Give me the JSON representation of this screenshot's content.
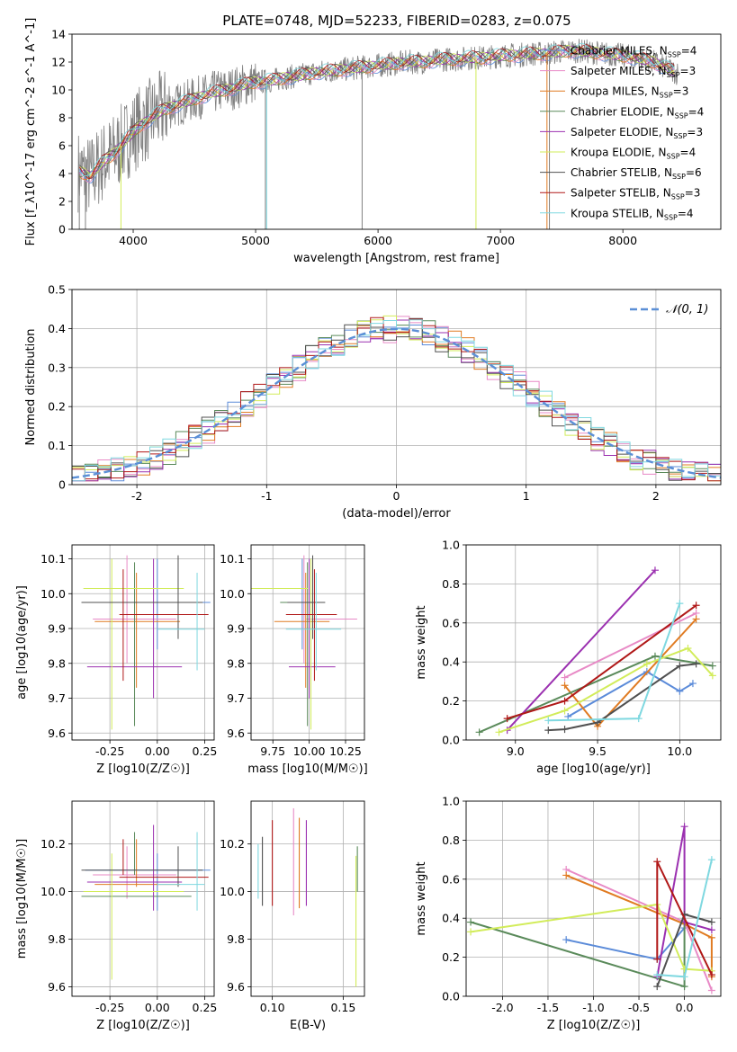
{
  "title": "PLATE=0748, MJD=52233, FIBERID=0283, z=0.075",
  "colors": {
    "chabrier_miles": "#5b8bd9",
    "salpeter_miles": "#e88ac6",
    "kroupa_miles": "#e07b22",
    "chabrier_elodie": "#5a8a5a",
    "salpeter_elodie": "#9b30b0",
    "kroupa_elodie": "#d2ec5a",
    "chabrier_stelib": "#505050",
    "salpeter_stelib": "#b01818",
    "kroupa_stelib": "#7fd8e0",
    "data": "#808080",
    "gauss": "#5b8fd6"
  },
  "chart_data": [
    {
      "type": "line",
      "panel": "spectrum",
      "xlabel": "wavelength [Angstrom, rest frame]",
      "ylabel": "Flux [f_λ10^-17 erg cm^-2 s^-1 A^-1]",
      "xlim": [
        3500,
        8800
      ],
      "ylim": [
        0,
        14
      ],
      "xticks": [
        4000,
        5000,
        6000,
        7000,
        8000
      ],
      "yticks": [
        0,
        2,
        4,
        6,
        8,
        10,
        12,
        14
      ],
      "x_continuum": [
        3550,
        3650,
        3750,
        3850,
        3950,
        4050,
        4150,
        4250,
        4350,
        4450,
        4550,
        4650,
        4750,
        4850,
        4950,
        5050,
        5150,
        5250,
        5350,
        5450,
        5550,
        5650,
        5750,
        5850,
        5950,
        6050,
        6150,
        6250,
        6350,
        6450,
        6550,
        6650,
        6750,
        6850,
        6950,
        7050,
        7150,
        7250,
        7350,
        7450,
        7550,
        7650,
        7750,
        7850,
        7950,
        8050,
        8150,
        8250,
        8350,
        8450
      ],
      "y_continuum": [
        4.2,
        3.8,
        4.8,
        5.5,
        6.5,
        7.4,
        8.0,
        8.6,
        8.9,
        9.2,
        9.5,
        9.8,
        10.0,
        10.2,
        10.5,
        10.6,
        10.7,
        10.9,
        11.0,
        11.2,
        11.3,
        11.4,
        11.5,
        11.6,
        11.7,
        11.8,
        11.9,
        12.0,
        12.0,
        12.1,
        12.2,
        12.2,
        12.3,
        12.3,
        12.4,
        12.5,
        12.5,
        12.6,
        12.6,
        12.7,
        12.8,
        12.8,
        12.7,
        12.6,
        12.5,
        12.4,
        12.2,
        12.0,
        11.6,
        11.2
      ],
      "legend": [
        "Chabrier MILES, N_SSP=4",
        "Salpeter MILES, N_SSP=3",
        "Kroupa MILES, N_SSP=3",
        "Chabrier ELODIE, N_SSP=4",
        "Salpeter ELODIE, N_SSP=3",
        "Kroupa ELODIE, N_SSP=4",
        "Chabrier STELIB, N_SSP=6",
        "Salpeter STELIB, N_SSP=3",
        "Kroupa STELIB, N_SSP=4"
      ],
      "legend_placement": "right"
    },
    {
      "type": "line",
      "panel": "residuals",
      "xlabel": "(data-model)/error",
      "ylabel": "Normed distribution",
      "xlim": [
        -2.5,
        2.5
      ],
      "ylim": [
        0,
        0.5
      ],
      "xticks": [
        -2,
        -1,
        0,
        1,
        2
      ],
      "yticks": [
        0.0,
        0.1,
        0.2,
        0.3,
        0.4,
        0.5
      ],
      "grid": true,
      "bin_width": 0.1,
      "legend": [
        "𝒩(0, 1)"
      ],
      "legend_placement": "top-right"
    },
    {
      "type": "scatter",
      "panel": "age_vs_Z",
      "xlabel": "Z [log10(Z/Z☉)]",
      "ylabel": "age [log10(age/yr)]",
      "xlim": [
        -0.45,
        0.3
      ],
      "ylim": [
        9.58,
        10.14
      ],
      "xticks": [
        -0.25,
        0.0,
        0.25
      ],
      "yticks": [
        9.6,
        9.7,
        9.8,
        9.9,
        10.0,
        10.1
      ],
      "grid": true,
      "points": [
        {
          "x": 0.0,
          "y": 9.975,
          "x_lo": -0.38,
          "x_hi": 0.28,
          "y_lo": 9.84,
          "y_hi": 10.1
        },
        {
          "x": -0.16,
          "y": 9.927,
          "x_lo": -0.34,
          "x_hi": 0.1,
          "y_lo": 9.8,
          "y_hi": 10.11
        },
        {
          "x": -0.11,
          "y": 9.92,
          "x_lo": -0.33,
          "x_hi": 0.12,
          "y_lo": 9.73,
          "y_hi": 10.06
        },
        {
          "x": -0.12,
          "y": 9.975,
          "x_lo": -0.4,
          "x_hi": 0.18,
          "y_lo": 9.62,
          "y_hi": 10.09
        },
        {
          "x": -0.02,
          "y": 9.79,
          "x_lo": -0.37,
          "x_hi": 0.13,
          "y_lo": 9.7,
          "y_hi": 10.1
        },
        {
          "x": -0.24,
          "y": 10.015,
          "x_lo": -0.39,
          "x_hi": 0.14,
          "y_lo": 9.61,
          "y_hi": 10.1
        },
        {
          "x": 0.11,
          "y": 9.975,
          "x_lo": -0.4,
          "x_hi": 0.24,
          "y_lo": 9.87,
          "y_hi": 10.11
        },
        {
          "x": -0.18,
          "y": 9.94,
          "x_lo": -0.2,
          "x_hi": 0.27,
          "y_lo": 9.75,
          "y_hi": 10.07
        },
        {
          "x": 0.21,
          "y": 9.898,
          "x_lo": 0.0,
          "x_hi": 0.25,
          "y_lo": 9.78,
          "y_hi": 10.06
        }
      ]
    },
    {
      "type": "scatter",
      "panel": "age_vs_mass",
      "xlabel": "mass [log10(M/M☉)]",
      "ylabel": "",
      "xlim": [
        9.6,
        10.38
      ],
      "ylim": [
        9.58,
        10.14
      ],
      "xticks": [
        9.75,
        10.0,
        10.25
      ],
      "xtick_labels": [
        "9.75",
        "10.00",
        "10.25"
      ],
      "yticks": [
        9.6,
        9.7,
        9.8,
        9.9,
        10.0,
        10.1
      ],
      "grid": true
    },
    {
      "type": "line",
      "panel": "massweight_vs_age",
      "xlabel": "age [log10(age/yr)]",
      "ylabel": "mass weight",
      "xlim": [
        8.7,
        10.25
      ],
      "ylim": [
        0,
        1
      ],
      "xticks": [
        9.0,
        9.5,
        10.0
      ],
      "yticks": [
        0.0,
        0.2,
        0.4,
        0.6,
        0.8,
        1.0
      ],
      "grid": true,
      "series": [
        {
          "x": [
            9.32,
            9.8,
            10.0,
            10.08
          ],
          "y": [
            0.12,
            0.35,
            0.25,
            0.29
          ]
        },
        {
          "x": [
            9.3,
            10.1
          ],
          "y": [
            0.32,
            0.65
          ]
        },
        {
          "x": [
            9.3,
            9.5,
            10.1
          ],
          "y": [
            0.28,
            0.07,
            0.62
          ]
        },
        {
          "x": [
            8.78,
            9.85,
            10.2
          ],
          "y": [
            0.04,
            0.43,
            0.38
          ]
        },
        {
          "x": [
            8.95,
            9.85
          ],
          "y": [
            0.05,
            0.87
          ]
        },
        {
          "x": [
            8.9,
            9.3,
            9.8,
            10.05,
            10.2
          ],
          "y": [
            0.04,
            0.15,
            0.39,
            0.47,
            0.33
          ]
        },
        {
          "x": [
            9.2,
            9.3,
            9.5,
            10.0,
            10.1
          ],
          "y": [
            0.05,
            0.055,
            0.09,
            0.38,
            0.39
          ]
        },
        {
          "x": [
            8.95,
            9.3,
            10.1
          ],
          "y": [
            0.11,
            0.2,
            0.69
          ]
        },
        {
          "x": [
            9.2,
            9.75,
            10.0
          ],
          "y": [
            0.1,
            0.11,
            0.7
          ]
        }
      ]
    },
    {
      "type": "scatter",
      "panel": "mass_vs_Z",
      "xlabel": "Z [log10(Z/Z☉)]",
      "ylabel": "mass [log10(M/M☉)]",
      "xlim": [
        -0.45,
        0.3
      ],
      "ylim": [
        9.56,
        10.38
      ],
      "xticks": [
        -0.25,
        0.0,
        0.25
      ],
      "yticks": [
        9.6,
        9.8,
        10.0,
        10.2
      ],
      "grid": true
    },
    {
      "type": "scatter",
      "panel": "mass_vs_EBV",
      "xlabel": "E(B-V)",
      "ylabel": "",
      "xlim": [
        0.085,
        0.165
      ],
      "ylim": [
        9.56,
        10.38
      ],
      "xticks": [
        0.1,
        0.15
      ],
      "xtick_labels": [
        "0.10",
        "0.15"
      ],
      "yticks": [
        9.6,
        9.8,
        10.0,
        10.2
      ],
      "grid": true,
      "bars": [
        {
          "x": 0.09,
          "y_lo": 9.97,
          "y_hi": 10.2
        },
        {
          "x": 0.093,
          "y_lo": 9.94,
          "y_hi": 10.23
        },
        {
          "x": 0.1,
          "y_lo": 9.94,
          "y_hi": 10.3
        },
        {
          "x": 0.115,
          "y_lo": 9.9,
          "y_hi": 10.35
        },
        {
          "x": 0.119,
          "y_lo": 9.93,
          "y_hi": 10.31
        },
        {
          "x": 0.124,
          "y_lo": 9.94,
          "y_hi": 10.3
        },
        {
          "x": 0.159,
          "y_lo": 9.6,
          "y_hi": 10.15
        },
        {
          "x": 0.16,
          "y_lo": 10.0,
          "y_hi": 10.19
        }
      ]
    },
    {
      "type": "line",
      "panel": "massweight_vs_Z",
      "xlabel": "Z [log10(Z/Z☉)]",
      "ylabel": "mass weight",
      "xlim": [
        -2.4,
        0.4
      ],
      "ylim": [
        0,
        1
      ],
      "xticks": [
        -2.0,
        -1.5,
        -1.0,
        -0.5,
        0.0
      ],
      "yticks": [
        0.0,
        0.2,
        0.4,
        0.6,
        0.8,
        1.0
      ],
      "grid": true,
      "series": [
        {
          "x": [
            -1.3,
            -0.3,
            0.0
          ],
          "y": [
            0.29,
            0.19,
            0.35
          ]
        },
        {
          "x": [
            -1.3,
            0.0,
            0.3
          ],
          "y": [
            0.65,
            0.38,
            0.03
          ]
        },
        {
          "x": [
            -1.3,
            0.0,
            0.3,
            0.3
          ],
          "y": [
            0.62,
            0.37,
            0.3,
            0.1
          ]
        },
        {
          "x": [
            -2.35,
            0.0,
            0.0
          ],
          "y": [
            0.38,
            0.05,
            0.42
          ]
        },
        {
          "x": [
            -0.3,
            0.0,
            0.0,
            0.3
          ],
          "y": [
            0.1,
            0.87,
            0.38,
            0.34
          ]
        },
        {
          "x": [
            -2.35,
            -0.3,
            0.0,
            0.3
          ],
          "y": [
            0.33,
            0.47,
            0.14,
            0.13
          ]
        },
        {
          "x": [
            -0.3,
            0.0,
            0.3
          ],
          "y": [
            0.05,
            0.42,
            0.38
          ]
        },
        {
          "x": [
            -0.3,
            -0.3,
            0.3
          ],
          "y": [
            0.19,
            0.69,
            0.11
          ]
        },
        {
          "x": [
            -0.3,
            0.0,
            0.3
          ],
          "y": [
            0.11,
            0.1,
            0.7
          ]
        }
      ]
    }
  ]
}
